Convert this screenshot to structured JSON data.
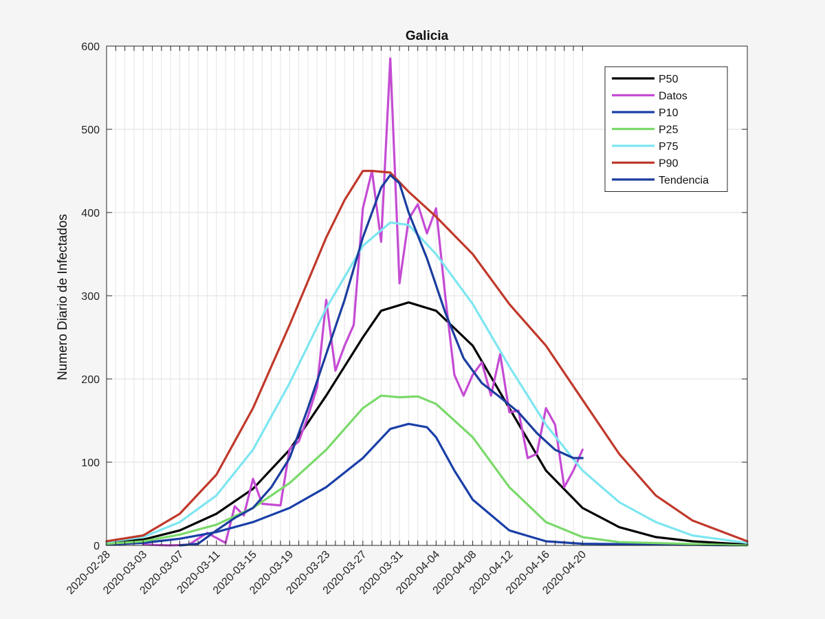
{
  "chart_data": {
    "type": "line",
    "title": "Galicia",
    "xlabel": "",
    "ylabel": "Numero Diario de Infectados",
    "ylim": [
      0,
      600
    ],
    "yticks": [
      0,
      100,
      200,
      300,
      400,
      500,
      600
    ],
    "x_start": "2020-02-28",
    "x_end": "2020-05-08",
    "xtick_labels": [
      "2020-02-28",
      "2020-03-03",
      "2020-03-07",
      "2020-03-11",
      "2020-03-15",
      "2020-03-19",
      "2020-03-23",
      "2020-03-27",
      "2020-03-31",
      "2020-04-04",
      "2020-04-08",
      "2020-04-12",
      "2020-04-16",
      "2020-04-20"
    ],
    "grid": true,
    "legend_position": "top-right",
    "series": [
      {
        "name": "P50",
        "color": "#000000",
        "points": [
          [
            "2020-02-28",
            3
          ],
          [
            "2020-03-03",
            7
          ],
          [
            "2020-03-07",
            18
          ],
          [
            "2020-03-11",
            38
          ],
          [
            "2020-03-15",
            68
          ],
          [
            "2020-03-19",
            115
          ],
          [
            "2020-03-23",
            180
          ],
          [
            "2020-03-27",
            250
          ],
          [
            "2020-03-29",
            282
          ],
          [
            "2020-04-01",
            292
          ],
          [
            "2020-04-04",
            282
          ],
          [
            "2020-04-08",
            240
          ],
          [
            "2020-04-12",
            165
          ],
          [
            "2020-04-16",
            90
          ],
          [
            "2020-04-20",
            45
          ],
          [
            "2020-04-24",
            22
          ],
          [
            "2020-04-28",
            10
          ],
          [
            "2020-05-02",
            5
          ],
          [
            "2020-05-08",
            1
          ]
        ]
      },
      {
        "name": "Datos",
        "color": "#c54bd4",
        "points": [
          [
            "2020-03-03",
            1
          ],
          [
            "2020-03-06",
            0
          ],
          [
            "2020-03-08",
            1
          ],
          [
            "2020-03-10",
            15
          ],
          [
            "2020-03-12",
            3
          ],
          [
            "2020-03-13",
            47
          ],
          [
            "2020-03-14",
            36
          ],
          [
            "2020-03-15",
            80
          ],
          [
            "2020-03-16",
            50
          ],
          [
            "2020-03-18",
            48
          ],
          [
            "2020-03-19",
            116
          ],
          [
            "2020-03-20",
            125
          ],
          [
            "2020-03-21",
            155
          ],
          [
            "2020-03-22",
            190
          ],
          [
            "2020-03-23",
            295
          ],
          [
            "2020-03-24",
            210
          ],
          [
            "2020-03-25",
            240
          ],
          [
            "2020-03-26",
            265
          ],
          [
            "2020-03-27",
            405
          ],
          [
            "2020-03-28",
            450
          ],
          [
            "2020-03-29",
            365
          ],
          [
            "2020-03-30",
            585
          ],
          [
            "2020-03-31",
            315
          ],
          [
            "2020-04-01",
            392
          ],
          [
            "2020-04-02",
            410
          ],
          [
            "2020-04-03",
            375
          ],
          [
            "2020-04-04",
            405
          ],
          [
            "2020-04-05",
            300
          ],
          [
            "2020-04-06",
            205
          ],
          [
            "2020-04-07",
            180
          ],
          [
            "2020-04-08",
            205
          ],
          [
            "2020-04-09",
            220
          ],
          [
            "2020-04-10",
            180
          ],
          [
            "2020-04-11",
            230
          ],
          [
            "2020-04-12",
            160
          ],
          [
            "2020-04-13",
            162
          ],
          [
            "2020-04-14",
            105
          ],
          [
            "2020-04-15",
            110
          ],
          [
            "2020-04-16",
            165
          ],
          [
            "2020-04-17",
            145
          ],
          [
            "2020-04-18",
            70
          ],
          [
            "2020-04-19",
            90
          ],
          [
            "2020-04-20",
            115
          ]
        ]
      },
      {
        "name": "P10",
        "color": "#1a3fa8",
        "points": [
          [
            "2020-02-28",
            1
          ],
          [
            "2020-03-03",
            3
          ],
          [
            "2020-03-07",
            8
          ],
          [
            "2020-03-11",
            16
          ],
          [
            "2020-03-15",
            28
          ],
          [
            "2020-03-19",
            45
          ],
          [
            "2020-03-23",
            70
          ],
          [
            "2020-03-27",
            105
          ],
          [
            "2020-03-30",
            140
          ],
          [
            "2020-04-01",
            146
          ],
          [
            "2020-04-03",
            142
          ],
          [
            "2020-04-04",
            130
          ],
          [
            "2020-04-06",
            90
          ],
          [
            "2020-04-08",
            55
          ],
          [
            "2020-04-12",
            18
          ],
          [
            "2020-04-16",
            5
          ],
          [
            "2020-04-20",
            2
          ],
          [
            "2020-05-08",
            0
          ]
        ]
      },
      {
        "name": "P25",
        "color": "#7ad96a",
        "points": [
          [
            "2020-02-28",
            2
          ],
          [
            "2020-03-03",
            5
          ],
          [
            "2020-03-07",
            13
          ],
          [
            "2020-03-11",
            25
          ],
          [
            "2020-03-15",
            45
          ],
          [
            "2020-03-19",
            75
          ],
          [
            "2020-03-23",
            115
          ],
          [
            "2020-03-27",
            165
          ],
          [
            "2020-03-29",
            180
          ],
          [
            "2020-03-31",
            178
          ],
          [
            "2020-04-02",
            179
          ],
          [
            "2020-04-04",
            170
          ],
          [
            "2020-04-08",
            130
          ],
          [
            "2020-04-12",
            70
          ],
          [
            "2020-04-16",
            28
          ],
          [
            "2020-04-20",
            10
          ],
          [
            "2020-04-24",
            4
          ],
          [
            "2020-05-08",
            0
          ]
        ]
      },
      {
        "name": "P75",
        "color": "#7de6f0",
        "points": [
          [
            "2020-02-28",
            4
          ],
          [
            "2020-03-03",
            10
          ],
          [
            "2020-03-07",
            28
          ],
          [
            "2020-03-11",
            60
          ],
          [
            "2020-03-15",
            115
          ],
          [
            "2020-03-19",
            195
          ],
          [
            "2020-03-23",
            285
          ],
          [
            "2020-03-27",
            360
          ],
          [
            "2020-03-30",
            388
          ],
          [
            "2020-04-01",
            385
          ],
          [
            "2020-04-04",
            350
          ],
          [
            "2020-04-08",
            290
          ],
          [
            "2020-04-12",
            215
          ],
          [
            "2020-04-16",
            145
          ],
          [
            "2020-04-20",
            90
          ],
          [
            "2020-04-24",
            52
          ],
          [
            "2020-04-28",
            28
          ],
          [
            "2020-05-02",
            12
          ],
          [
            "2020-05-08",
            3
          ]
        ]
      },
      {
        "name": "P90",
        "color": "#c0392b",
        "points": [
          [
            "2020-02-28",
            5
          ],
          [
            "2020-03-03",
            12
          ],
          [
            "2020-03-07",
            38
          ],
          [
            "2020-03-11",
            85
          ],
          [
            "2020-03-15",
            165
          ],
          [
            "2020-03-19",
            265
          ],
          [
            "2020-03-23",
            370
          ],
          [
            "2020-03-25",
            415
          ],
          [
            "2020-03-27",
            450
          ],
          [
            "2020-03-28",
            450
          ],
          [
            "2020-03-30",
            448
          ],
          [
            "2020-04-01",
            425
          ],
          [
            "2020-04-04",
            395
          ],
          [
            "2020-04-08",
            350
          ],
          [
            "2020-04-12",
            290
          ],
          [
            "2020-04-16",
            240
          ],
          [
            "2020-04-20",
            175
          ],
          [
            "2020-04-24",
            110
          ],
          [
            "2020-04-28",
            60
          ],
          [
            "2020-05-02",
            30
          ],
          [
            "2020-05-08",
            5
          ]
        ]
      },
      {
        "name": "Tendencia",
        "color": "#1b3d9e",
        "points": [
          [
            "2020-03-07",
            0
          ],
          [
            "2020-03-09",
            2
          ],
          [
            "2020-03-11",
            18
          ],
          [
            "2020-03-13",
            33
          ],
          [
            "2020-03-15",
            45
          ],
          [
            "2020-03-17",
            70
          ],
          [
            "2020-03-19",
            105
          ],
          [
            "2020-03-21",
            165
          ],
          [
            "2020-03-23",
            230
          ],
          [
            "2020-03-25",
            295
          ],
          [
            "2020-03-27",
            370
          ],
          [
            "2020-03-29",
            430
          ],
          [
            "2020-03-30",
            445
          ],
          [
            "2020-03-31",
            435
          ],
          [
            "2020-04-01",
            400
          ],
          [
            "2020-04-03",
            345
          ],
          [
            "2020-04-05",
            280
          ],
          [
            "2020-04-07",
            225
          ],
          [
            "2020-04-09",
            195
          ],
          [
            "2020-04-11",
            178
          ],
          [
            "2020-04-13",
            160
          ],
          [
            "2020-04-15",
            135
          ],
          [
            "2020-04-17",
            115
          ],
          [
            "2020-04-19",
            105
          ],
          [
            "2020-04-20",
            105
          ]
        ]
      }
    ]
  }
}
